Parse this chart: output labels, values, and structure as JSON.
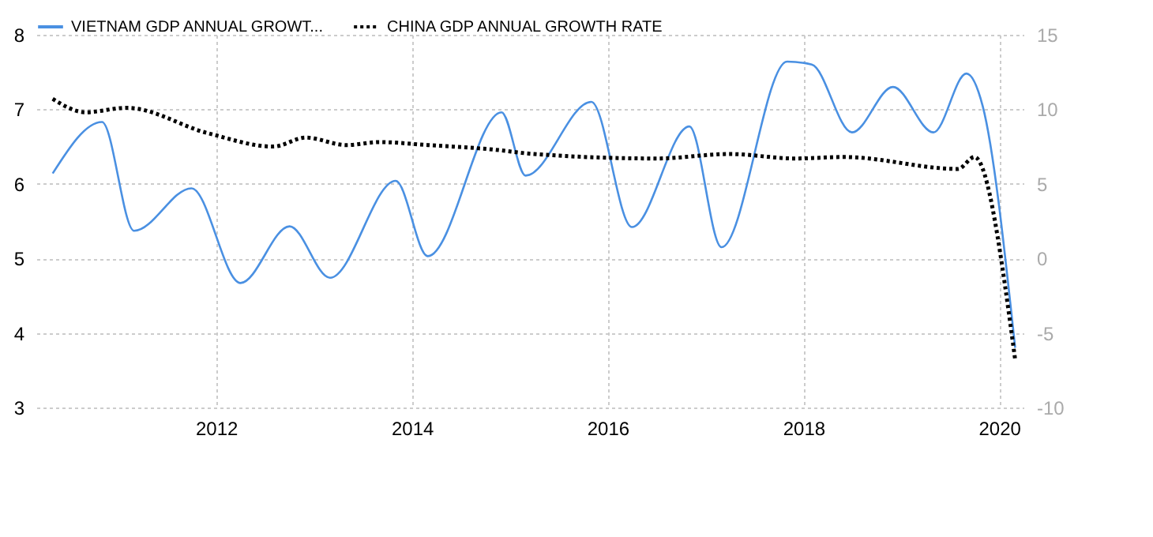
{
  "chart_data": {
    "type": "line",
    "series": [
      {
        "name": "VIETNAM GDP ANNUAL GROWT...",
        "color": "#4a90e2",
        "line_style": "solid",
        "x": [
          "2010-05",
          "2010-11",
          "2011-03",
          "2011-10",
          "2012-04",
          "2012-10",
          "2013-03",
          "2013-11",
          "2014-03",
          "2014-12",
          "2015-03",
          "2015-11",
          "2016-04",
          "2016-11",
          "2017-03",
          "2017-11",
          "2018-02",
          "2018-07",
          "2018-12",
          "2019-05",
          "2019-09",
          "2019-11",
          "2020-03"
        ],
        "values": [
          6.14,
          6.83,
          5.37,
          5.94,
          4.67,
          5.43,
          4.74,
          6.04,
          5.03,
          6.96,
          6.11,
          7.1,
          5.42,
          6.77,
          5.15,
          7.64,
          7.6,
          6.69,
          7.3,
          6.69,
          7.48,
          7.04,
          3.8
        ]
      },
      {
        "name": "CHINA GDP ANNUAL GROWTH RATE",
        "color": "#000000",
        "line_style": "dotted",
        "axis": "y2",
        "x": [
          "2010-05",
          "2010-09",
          "2011-02",
          "2011-12",
          "2012-08",
          "2012-12",
          "2013-05",
          "2013-09",
          "2014-03",
          "2014-11",
          "2015-04",
          "2016-07",
          "2017-04",
          "2017-12",
          "2018-06",
          "2019-08",
          "2019-10",
          "2020-03"
        ],
        "values": [
          10.7,
          9.8,
          10.1,
          8.4,
          7.5,
          8.1,
          7.6,
          7.8,
          7.6,
          7.3,
          7.0,
          6.7,
          7.0,
          6.7,
          6.8,
          6.0,
          6.8,
          -6.8
        ]
      }
    ],
    "xlim": [
      "2010-03",
      "2020-04"
    ],
    "xticks": [
      "2012",
      "2014",
      "2016",
      "2018",
      "2020"
    ],
    "ylim": [
      3,
      8
    ],
    "yticks": [
      3,
      4,
      5,
      6,
      7,
      8
    ],
    "y2lim": [
      -10,
      15
    ],
    "y2ticks": [
      -10,
      -5,
      0,
      5,
      10,
      15
    ],
    "grid": true,
    "legend": "top left"
  }
}
